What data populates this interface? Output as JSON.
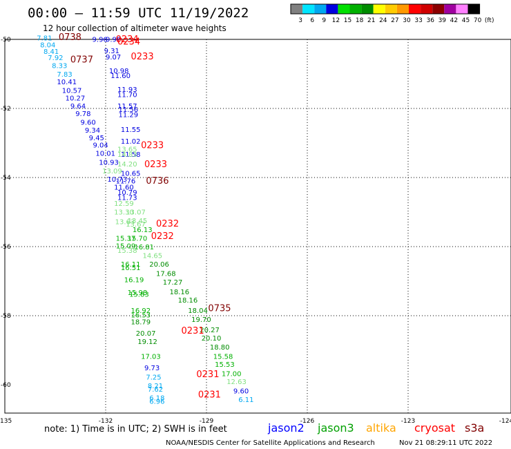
{
  "title": "00:00 – 11:59 UTC 11/19/2022",
  "subtitle": "12 hour collection of altimeter wave heights",
  "note": "note:  1) Time is in UTC;  2) SWH is in feet",
  "footer_left": "NOAA/NESDIS Center for Satellite Applications and Research",
  "footer_right": "Nov 21 08:29:11 UTC 2022",
  "colorbar": {
    "labels": [
      "3",
      "6",
      "9",
      "12",
      "15",
      "18",
      "21",
      "24",
      "27",
      "30",
      "33",
      "36",
      "39",
      "42",
      "45",
      "70",
      "(ft)"
    ],
    "colors": [
      "#808080",
      "#00e5ff",
      "#00a8f0",
      "#0000e0",
      "#00e000",
      "#00b000",
      "#008c00",
      "#ffff00",
      "#ffcc00",
      "#ff9900",
      "#ff0000",
      "#d00000",
      "#8c0000",
      "#a000a0",
      "#ff80ff",
      "#000000"
    ]
  },
  "legend": [
    {
      "name": "jason2",
      "color": "#0000ff"
    },
    {
      "name": "jason3",
      "color": "#00a000"
    },
    {
      "name": "altika",
      "color": "#ffa500"
    },
    {
      "name": "cryosat",
      "color": "#ff0000"
    },
    {
      "name": "s3a",
      "color": "#800000"
    }
  ],
  "chart_data": {
    "type": "scatter",
    "xlim": [
      -135,
      -124
    ],
    "ylim": [
      -60,
      -50
    ],
    "x_ticks": [
      "-135",
      "-132",
      "-129",
      "-126",
      "-123",
      "-124"
    ],
    "y_ticks": [
      "-50",
      "-52",
      "-54",
      "-56",
      "-58",
      "-60"
    ],
    "grid": true,
    "swh_values": [
      {
        "lon": -134.05,
        "lat": -50.03,
        "swh": "7.81",
        "color": "#00a8f0"
      },
      {
        "lon": -133.95,
        "lat": -50.23,
        "swh": "8.04",
        "color": "#00a8f0"
      },
      {
        "lon": -133.85,
        "lat": -50.42,
        "swh": "8.41",
        "color": "#00a8f0"
      },
      {
        "lon": -133.72,
        "lat": -50.6,
        "swh": "7.92",
        "color": "#00a8f0"
      },
      {
        "lon": -133.6,
        "lat": -50.83,
        "swh": "8.33",
        "color": "#00a8f0"
      },
      {
        "lon": -133.45,
        "lat": -51.08,
        "swh": "7.83",
        "color": "#00a8f0"
      },
      {
        "lon": -133.45,
        "lat": -51.3,
        "swh": "10.41",
        "color": "#0000e0"
      },
      {
        "lon": -133.3,
        "lat": -51.55,
        "swh": "10.57",
        "color": "#0000e0"
      },
      {
        "lon": -133.2,
        "lat": -51.77,
        "swh": "10.27",
        "color": "#0000e0"
      },
      {
        "lon": -133.05,
        "lat": -52.0,
        "swh": "9.64",
        "color": "#0000e0"
      },
      {
        "lon": -132.9,
        "lat": -52.22,
        "swh": "9.78",
        "color": "#0000e0"
      },
      {
        "lon": -132.75,
        "lat": -52.47,
        "swh": "9.60",
        "color": "#0000e0"
      },
      {
        "lon": -132.62,
        "lat": -52.7,
        "swh": "9.34",
        "color": "#0000e0"
      },
      {
        "lon": -132.5,
        "lat": -52.92,
        "swh": "9.45",
        "color": "#0000e0"
      },
      {
        "lon": -132.38,
        "lat": -53.13,
        "swh": "9.04",
        "color": "#0000e0"
      },
      {
        "lon": -132.3,
        "lat": -53.37,
        "swh": "10.01",
        "color": "#0000e0"
      },
      {
        "lon": -132.2,
        "lat": -53.63,
        "swh": "10.93",
        "color": "#0000e0"
      },
      {
        "lon": -132.1,
        "lat": -53.88,
        "swh": "13.09",
        "color": "#80e080"
      },
      {
        "lon": -131.95,
        "lat": -54.12,
        "swh": "10.73",
        "color": "#0000e0"
      },
      {
        "lon": -132.4,
        "lat": -50.07,
        "swh": "9.96",
        "color": "#0000e0"
      },
      {
        "lon": -132.0,
        "lat": -50.07,
        "swh": "9.98",
        "color": "#0000e0"
      },
      {
        "lon": -132.05,
        "lat": -50.4,
        "swh": "9.31",
        "color": "#0000e0"
      },
      {
        "lon": -132.0,
        "lat": -50.58,
        "swh": "9.07",
        "color": "#0000e0"
      },
      {
        "lon": -131.9,
        "lat": -50.98,
        "swh": "10.98",
        "color": "#0000e0"
      },
      {
        "lon": -131.85,
        "lat": -51.12,
        "swh": "11.60",
        "color": "#0000e0"
      },
      {
        "lon": -131.65,
        "lat": -51.52,
        "swh": "11.93",
        "color": "#0000e0"
      },
      {
        "lon": -131.65,
        "lat": -51.67,
        "swh": "11.70",
        "color": "#0000e0"
      },
      {
        "lon": -131.65,
        "lat": -52.0,
        "swh": "11.57",
        "color": "#0000e0"
      },
      {
        "lon": -131.62,
        "lat": -52.1,
        "swh": "11.56",
        "color": "#0000e0"
      },
      {
        "lon": -131.62,
        "lat": -52.25,
        "swh": "11.29",
        "color": "#0000e0"
      },
      {
        "lon": -131.55,
        "lat": -52.68,
        "swh": "11.55",
        "color": "#0000e0"
      },
      {
        "lon": -131.55,
        "lat": -53.02,
        "swh": "11.02",
        "color": "#0000e0"
      },
      {
        "lon": -131.65,
        "lat": -53.25,
        "swh": "13.65",
        "color": "#80e080"
      },
      {
        "lon": -131.55,
        "lat": -53.4,
        "swh": "11.58",
        "color": "#0000e0"
      },
      {
        "lon": -131.65,
        "lat": -53.4,
        "swh": "14.83",
        "color": "#80e080"
      },
      {
        "lon": -131.65,
        "lat": -53.68,
        "swh": "14.20",
        "color": "#80e080"
      },
      {
        "lon": -131.55,
        "lat": -53.95,
        "swh": "10.65",
        "color": "#0000e0"
      },
      {
        "lon": -131.7,
        "lat": -54.17,
        "swh": "11.76",
        "color": "#0000e0"
      },
      {
        "lon": -131.75,
        "lat": -54.35,
        "swh": "11.60",
        "color": "#0000e0"
      },
      {
        "lon": -131.65,
        "lat": -54.5,
        "swh": "10.79",
        "color": "#0000e0"
      },
      {
        "lon": -131.65,
        "lat": -54.65,
        "swh": "11.73",
        "color": "#0000e0"
      },
      {
        "lon": -131.75,
        "lat": -54.82,
        "swh": "12.59",
        "color": "#80e080"
      },
      {
        "lon": -131.75,
        "lat": -55.07,
        "swh": "13.30",
        "color": "#80e080"
      },
      {
        "lon": -131.4,
        "lat": -55.07,
        "swh": "13.07",
        "color": "#80e080"
      },
      {
        "lon": -131.72,
        "lat": -55.35,
        "swh": "13.63",
        "color": "#80e080"
      },
      {
        "lon": -131.35,
        "lat": -55.32,
        "swh": "13.45",
        "color": "#80e080"
      },
      {
        "lon": -131.4,
        "lat": -55.42,
        "swh": "13.67",
        "color": "#80e080"
      },
      {
        "lon": -131.2,
        "lat": -55.58,
        "swh": "16.13",
        "color": "#00b000"
      },
      {
        "lon": -131.7,
        "lat": -55.83,
        "swh": "15.37",
        "color": "#00b000"
      },
      {
        "lon": -131.35,
        "lat": -55.83,
        "swh": "15.70",
        "color": "#00b000"
      },
      {
        "lon": -131.7,
        "lat": -56.05,
        "swh": "15.09",
        "color": "#00b000"
      },
      {
        "lon": -131.15,
        "lat": -56.08,
        "swh": "16.81",
        "color": "#00b000"
      },
      {
        "lon": -131.65,
        "lat": -56.18,
        "swh": "15.38",
        "color": "#80e080"
      },
      {
        "lon": -130.9,
        "lat": -56.33,
        "swh": "14.65",
        "color": "#80e080"
      },
      {
        "lon": -131.55,
        "lat": -56.58,
        "swh": "16.11",
        "color": "#00b000"
      },
      {
        "lon": -131.55,
        "lat": -56.68,
        "swh": "16.51",
        "color": "#00b000"
      },
      {
        "lon": -130.7,
        "lat": -56.58,
        "swh": "20.06",
        "color": "#008c00"
      },
      {
        "lon": -130.5,
        "lat": -56.85,
        "swh": "17.68",
        "color": "#008c00"
      },
      {
        "lon": -131.45,
        "lat": -57.03,
        "swh": "16.19",
        "color": "#00b000"
      },
      {
        "lon": -130.3,
        "lat": -57.1,
        "swh": "17.27",
        "color": "#008c00"
      },
      {
        "lon": -131.35,
        "lat": -57.4,
        "swh": "15.98",
        "color": "#00b000"
      },
      {
        "lon": -131.3,
        "lat": -57.45,
        "swh": "15.83",
        "color": "#00b000"
      },
      {
        "lon": -130.1,
        "lat": -57.38,
        "swh": "18.16",
        "color": "#008c00"
      },
      {
        "lon": -129.85,
        "lat": -57.62,
        "swh": "18.16",
        "color": "#008c00"
      },
      {
        "lon": -131.25,
        "lat": -57.92,
        "swh": "16.92",
        "color": "#00b000"
      },
      {
        "lon": -131.25,
        "lat": -58.05,
        "swh": "16.53",
        "color": "#00b000"
      },
      {
        "lon": -131.25,
        "lat": -58.25,
        "swh": "18.79",
        "color": "#008c00"
      },
      {
        "lon": -129.55,
        "lat": -57.92,
        "swh": "18.04",
        "color": "#008c00"
      },
      {
        "lon": -129.45,
        "lat": -58.18,
        "swh": "19.70",
        "color": "#008c00"
      },
      {
        "lon": -131.1,
        "lat": -58.58,
        "swh": "20.07",
        "color": "#008c00"
      },
      {
        "lon": -131.05,
        "lat": -58.82,
        "swh": "19.12",
        "color": "#008c00"
      },
      {
        "lon": -129.2,
        "lat": -58.48,
        "swh": "20.27",
        "color": "#008c00"
      },
      {
        "lon": -129.15,
        "lat": -58.72,
        "swh": "20.10",
        "color": "#008c00"
      },
      {
        "lon": -128.9,
        "lat": -58.98,
        "swh": "18.80",
        "color": "#008c00"
      },
      {
        "lon": -130.95,
        "lat": -59.25,
        "swh": "17.03",
        "color": "#00b000"
      },
      {
        "lon": -128.8,
        "lat": -59.25,
        "swh": "15.58",
        "color": "#00b000"
      },
      {
        "lon": -128.75,
        "lat": -59.48,
        "swh": "15.53",
        "color": "#00b000"
      },
      {
        "lon": -130.85,
        "lat": -59.58,
        "swh": "9.73",
        "color": "#0000e0"
      },
      {
        "lon": -128.55,
        "lat": -59.75,
        "swh": "17.00",
        "color": "#00b000"
      },
      {
        "lon": -130.8,
        "lat": -59.85,
        "swh": "7.25",
        "color": "#00a8f0"
      },
      {
        "lon": -128.4,
        "lat": -59.98,
        "swh": "12.63",
        "color": "#80e080"
      },
      {
        "lon": -130.75,
        "lat": -60.1,
        "swh": "8.21",
        "color": "#00a8f0"
      },
      {
        "lon": -130.75,
        "lat": -60.2,
        "swh": "7.62",
        "color": "#00a8f0"
      },
      {
        "lon": -128.2,
        "lat": -60.25,
        "swh": "9.60",
        "color": "#0000e0"
      },
      {
        "lon": -130.7,
        "lat": -60.45,
        "swh": "6.18",
        "color": "#00a8f0"
      },
      {
        "lon": -130.7,
        "lat": -60.55,
        "swh": "6.96",
        "color": "#00a8f0"
      },
      {
        "lon": -128.05,
        "lat": -60.5,
        "swh": "6.11",
        "color": "#00a8f0"
      }
    ],
    "times": [
      {
        "lon": -133.4,
        "lat": -50.02,
        "label": "0738",
        "color": "#800000"
      },
      {
        "lon": -133.05,
        "lat": -50.67,
        "label": "0737",
        "color": "#800000"
      },
      {
        "lon": -131.7,
        "lat": -50.08,
        "label": "0234",
        "color": "#ff0000"
      },
      {
        "lon": -131.65,
        "lat": -50.15,
        "label": "0234",
        "color": "#ff0000"
      },
      {
        "lon": -131.25,
        "lat": -50.58,
        "label": "0233",
        "color": "#ff0000"
      },
      {
        "lon": -130.95,
        "lat": -53.15,
        "label": "0233",
        "color": "#ff0000"
      },
      {
        "lon": -130.85,
        "lat": -53.7,
        "label": "0233",
        "color": "#ff0000"
      },
      {
        "lon": -130.8,
        "lat": -54.18,
        "label": "0736",
        "color": "#800000"
      },
      {
        "lon": -130.5,
        "lat": -55.42,
        "label": "0232",
        "color": "#ff0000"
      },
      {
        "lon": -130.65,
        "lat": -55.78,
        "label": "0232",
        "color": "#ff0000"
      },
      {
        "lon": -128.95,
        "lat": -57.87,
        "label": "0735",
        "color": "#800000"
      },
      {
        "lon": -129.75,
        "lat": -58.52,
        "label": "0231",
        "color": "#ff0000"
      },
      {
        "lon": -129.3,
        "lat": -59.78,
        "label": "0231",
        "color": "#ff0000"
      },
      {
        "lon": -129.25,
        "lat": -60.37,
        "label": "0231",
        "color": "#ff0000"
      }
    ]
  }
}
